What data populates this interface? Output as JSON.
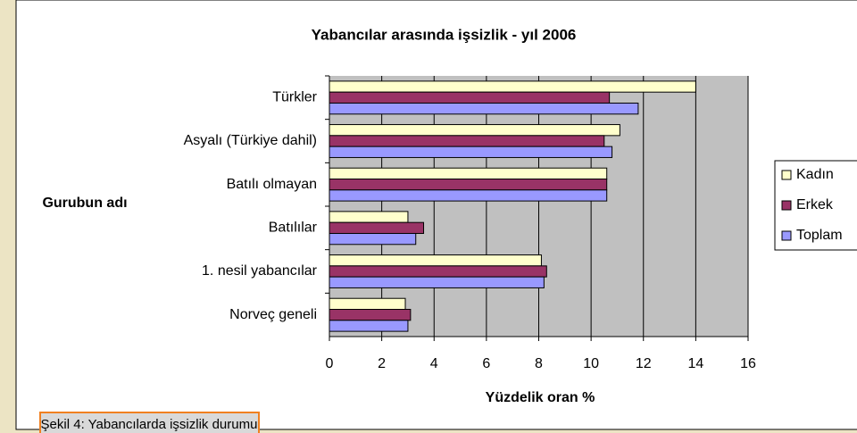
{
  "chart_data": {
    "type": "bar",
    "orientation": "horizontal",
    "title": "Yabancılar arasında işsizlik - yıl 2006",
    "ylabel": "Gurubun adı",
    "xlabel": "Yüzdelik oran %",
    "categories": [
      "Türkler",
      "Asyalı (Türkiye dahil)",
      "Batılı olmayan",
      "Batılılar",
      "1. nesil yabancılar",
      "Norveç geneli"
    ],
    "series": [
      {
        "name": "Kadın",
        "color": "#ffffcc",
        "values": [
          14,
          11.1,
          10.6,
          3.0,
          8.1,
          2.9
        ]
      },
      {
        "name": "Erkek",
        "color": "#993366",
        "values": [
          10.7,
          10.5,
          10.6,
          3.6,
          8.3,
          3.1
        ]
      },
      {
        "name": "Toplam",
        "color": "#9999ff",
        "values": [
          11.8,
          10.8,
          10.6,
          3.3,
          8.2,
          3.0
        ]
      }
    ],
    "xlim": [
      0,
      16
    ],
    "xticks": [
      0,
      2,
      4,
      6,
      8,
      10,
      12,
      14,
      16
    ],
    "grid": true,
    "legend": "right",
    "caption": "Şekil 4: Yabancılarda işsizlik durumu"
  }
}
